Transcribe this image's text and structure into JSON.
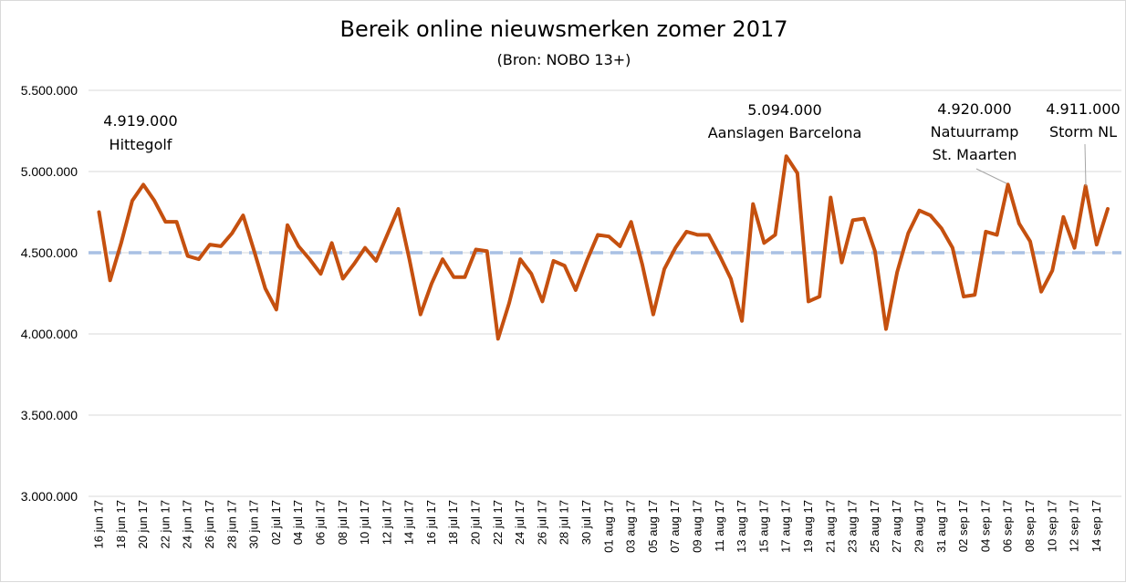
{
  "chart_data": {
    "type": "line",
    "title": "Bereik online nieuwsmerken zomer 2017",
    "subtitle": "(Bron: NOBO 13+)",
    "xlabel": "",
    "ylabel": "",
    "ylim": [
      3000000,
      5500000
    ],
    "y_ticks": [
      {
        "value": 3000000,
        "label": "3.000.000"
      },
      {
        "value": 3500000,
        "label": "3.500.000"
      },
      {
        "value": 4000000,
        "label": "4.000.000"
      },
      {
        "value": 4500000,
        "label": "4.500.000"
      },
      {
        "value": 5000000,
        "label": "5.000.000"
      },
      {
        "value": 5500000,
        "label": "5.500.000"
      }
    ],
    "x_tick_labels": [
      "16 jun 17",
      "18 jun 17",
      "20 jun 17",
      "22 jun 17",
      "24 jun 17",
      "26 jun 17",
      "28 jun 17",
      "30 jun 17",
      "02 jul 17",
      "04 jul 17",
      "06 jul 17",
      "08 jul 17",
      "10 jul 17",
      "12 jul 17",
      "14 jul 17",
      "16 jul 17",
      "18 jul 17",
      "20 jul 17",
      "22 jul 17",
      "24 jul 17",
      "26 jul 17",
      "28 jul 17",
      "30 jul 17",
      "01 aug 17",
      "03 aug 17",
      "05 aug 17",
      "07 aug 17",
      "09 aug 17",
      "11 aug 17",
      "13 aug 17",
      "15 aug 17",
      "17 aug 17",
      "19 aug 17",
      "21 aug 17",
      "23 aug 17",
      "25 aug 17",
      "27 aug 17",
      "29 aug 17",
      "31 aug 17",
      "02 sep 17",
      "04 sep 17",
      "06 sep 17",
      "08 sep 17",
      "10 sep 17",
      "12 sep 17",
      "14 sep 17"
    ],
    "series": [
      {
        "color": "#c5500f",
        "values": [
          4750000,
          4330000,
          4560000,
          4820000,
          4919000,
          4820000,
          4690000,
          4690000,
          4480000,
          4460000,
          4550000,
          4540000,
          4620000,
          4730000,
          4510000,
          4280000,
          4150000,
          4670000,
          4540000,
          4460000,
          4370000,
          4560000,
          4340000,
          4430000,
          4530000,
          4450000,
          4610000,
          4770000,
          4460000,
          4120000,
          4310000,
          4460000,
          4350000,
          4350000,
          4520000,
          4510000,
          3970000,
          4190000,
          4460000,
          4370000,
          4200000,
          4450000,
          4420000,
          4270000,
          4450000,
          4610000,
          4600000,
          4540000,
          4690000,
          4430000,
          4120000,
          4400000,
          4530000,
          4630000,
          4610000,
          4610000,
          4480000,
          4340000,
          4080000,
          4800000,
          4560000,
          4610000,
          5094000,
          4990000,
          4200000,
          4230000,
          4840000,
          4440000,
          4700000,
          4710000,
          4510000,
          4030000,
          4380000,
          4620000,
          4760000,
          4730000,
          4650000,
          4530000,
          4230000,
          4240000,
          4630000,
          4610000,
          4920000,
          4680000,
          4570000,
          4260000,
          4390000,
          4720000,
          4530000,
          4911000,
          4550000,
          4770000
        ]
      }
    ],
    "reference_line": {
      "value": 4500000,
      "color": "#a9c0e4"
    },
    "annotations": [
      {
        "index": 4,
        "lines": [
          "4.919.000",
          "Hittegolf"
        ]
      },
      {
        "index": 62,
        "lines": [
          "5.094.000",
          "Aanslagen  Barcelona"
        ]
      },
      {
        "index": 82,
        "lines": [
          "4.920.000",
          "Natuurramp",
          "St. Maarten"
        ]
      },
      {
        "index": 89,
        "lines": [
          "4.911.000",
          "Storm NL"
        ]
      }
    ],
    "grid": true,
    "legend": "none"
  }
}
